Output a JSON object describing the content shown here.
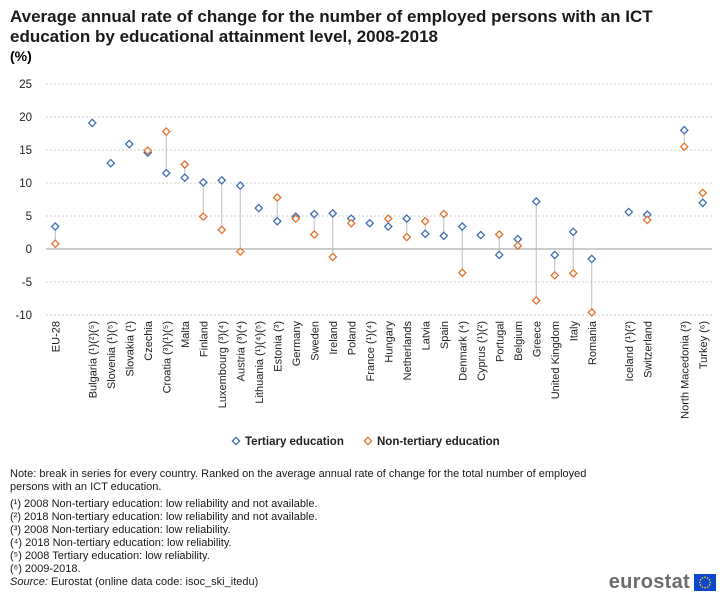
{
  "title": "Average annual rate of change for the number of employed persons with an ICT education by educational attainment level, 2008-2018",
  "unit": "(%)",
  "chart_data": {
    "type": "scatter",
    "title": "Average annual rate of change for the number of employed persons with an ICT education by educational attainment level, 2008-2018",
    "ylabel": "(%)",
    "ylim": [
      -10,
      25
    ],
    "yticks": [
      25,
      20,
      15,
      10,
      5,
      0,
      -5,
      -10
    ],
    "grid": true,
    "legend_position": "bottom-center",
    "categories": [
      "EU-28",
      "",
      "Bulgaria (¹)(²)(⁵)",
      "Slovenia (¹)(⁵)",
      "Slovakia (¹)",
      "Czechia",
      "Croatia (³)(¹)(⁵)",
      "Malta",
      "Finland",
      "Luxembourg (³)(⁴)",
      "Austria (³)(⁴)",
      "Lithuania (¹)(⁴)(⁵)",
      "Estonia (³)",
      "Germany",
      "Sweden",
      "Ireland",
      "Poland",
      "France (¹)(⁴)",
      "Hungary",
      "Netherlands",
      "Latvia",
      "Spain",
      "Denmark (⁴)",
      "Cyprus (¹)(²)",
      "Portugal",
      "Belgium",
      "Greece",
      "United Kingdom",
      "Italy",
      "Romania",
      "",
      "Iceland (¹)(²)",
      "Switzerland",
      "",
      "North Macedonia (³)",
      "Turkey (⁶)"
    ],
    "series": [
      {
        "name": "Tertiary education",
        "color": "#3f6fb2",
        "values": [
          3.4,
          null,
          19.1,
          13.0,
          15.9,
          14.6,
          11.5,
          10.8,
          10.1,
          10.4,
          9.6,
          6.2,
          4.2,
          4.9,
          5.3,
          5.4,
          4.6,
          3.9,
          3.4,
          4.6,
          2.3,
          2.0,
          3.4,
          2.1,
          -0.9,
          1.5,
          7.2,
          -0.9,
          2.6,
          -1.5,
          null,
          5.6,
          5.2,
          null,
          18.0,
          7.0
        ]
      },
      {
        "name": "Non-tertiary education",
        "color": "#e3732f",
        "values": [
          0.8,
          null,
          null,
          null,
          null,
          14.9,
          17.8,
          12.8,
          4.9,
          2.9,
          -0.4,
          null,
          7.8,
          4.6,
          2.2,
          -1.2,
          3.9,
          null,
          4.6,
          1.8,
          4.2,
          5.3,
          -3.6,
          null,
          2.2,
          0.5,
          -7.8,
          -4.0,
          -3.7,
          -9.6,
          null,
          null,
          4.4,
          null,
          15.5,
          8.5
        ]
      }
    ]
  },
  "notes": {
    "main": "Note: break in series for every country. Ranked on the average annual rate of change for the total number of employed persons with an ICT education.",
    "footnotes": [
      "(¹) 2008 Non-tertiary education: low reliability and not available.",
      "(²) 2018 Non-tertiary education: low reliability and not available.",
      "(³) 2008 Non-tertiary education: low reliability.",
      "(⁴) 2018 Non-tertiary education: low reliability.",
      "(⁵) 2008 Tertiary education: low reliability.",
      "(⁶) 2009-2018."
    ],
    "source_label": "Source:",
    "source_text": " Eurostat (online data code: isoc_ski_itedu)"
  },
  "logo": {
    "text": "eurostat",
    "flag_color": "#0e47cb",
    "star_color": "#ffdd00"
  }
}
